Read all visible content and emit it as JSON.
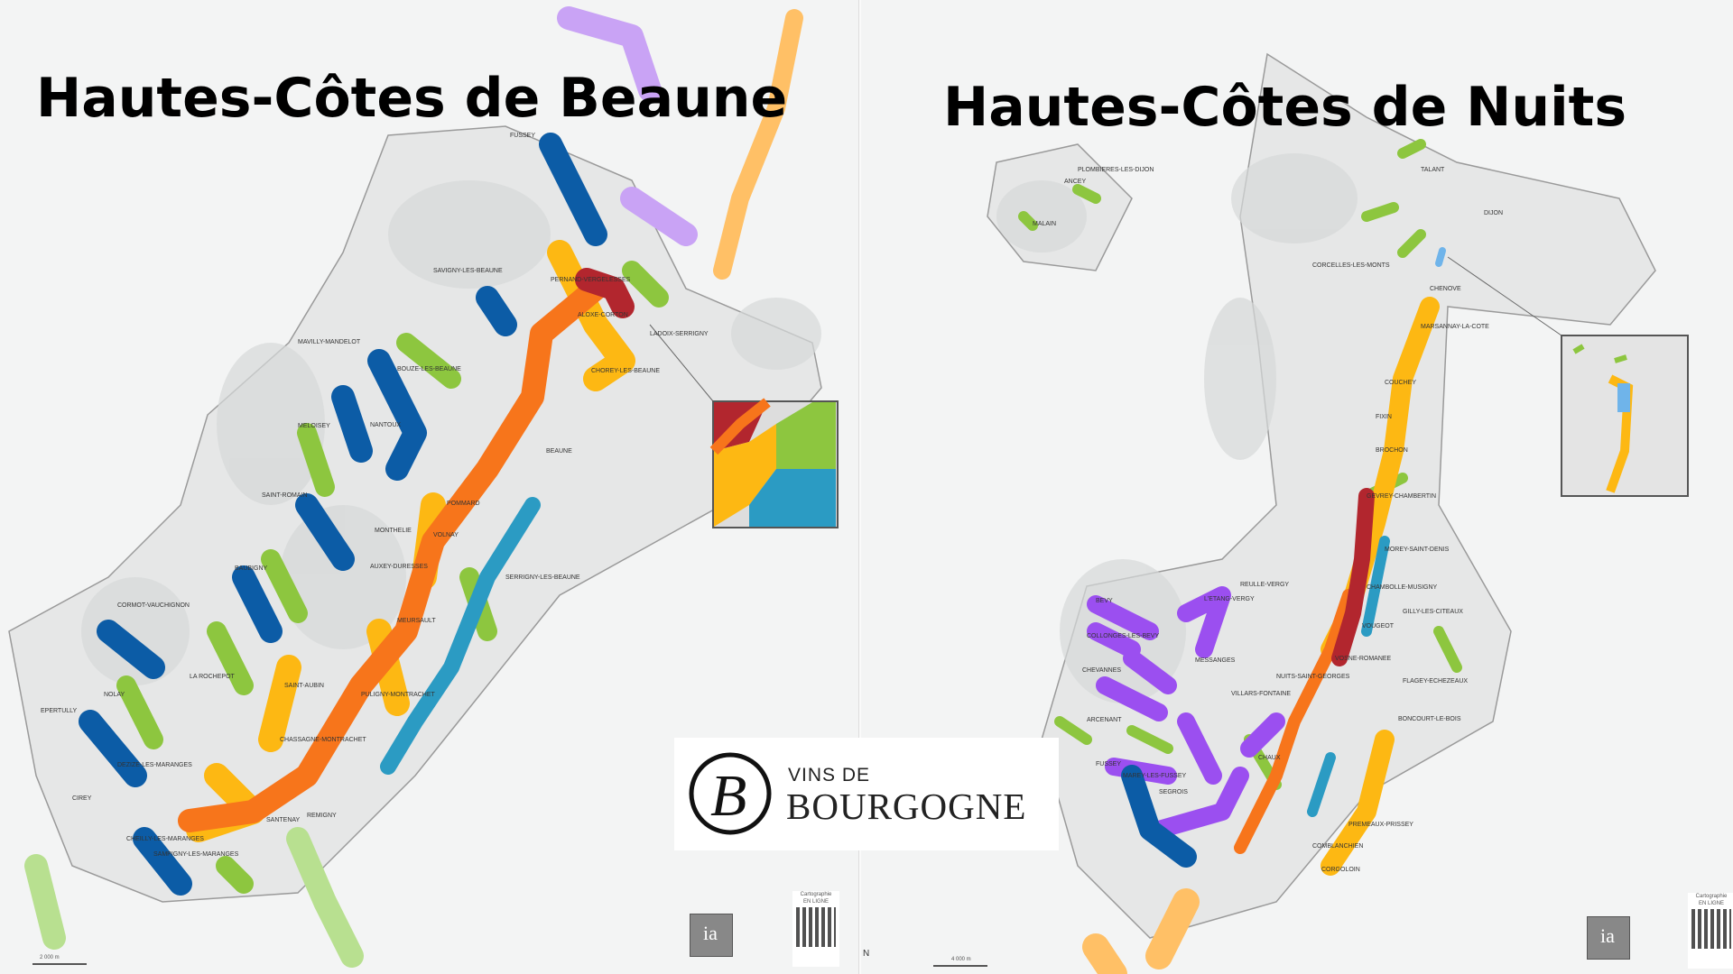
{
  "titles": {
    "left": "Hautes-Côtes de Beaune",
    "right": "Hautes-Côtes de Nuits"
  },
  "logo": {
    "line1": "VINS DE",
    "line2": "BOURGOGNE",
    "monogram": "B"
  },
  "cartography_badge": {
    "line1": "Cartographie",
    "line2": "EN LIGNE"
  },
  "institute_logo": "ia",
  "north_label": "N",
  "scale_left": "2 000 m",
  "scale_right": "4 000 m",
  "colors": {
    "dark_blue": "#0c5ca6",
    "green": "#8dc63f",
    "yellow": "#fdb813",
    "orange": "#f7751b",
    "dark_red": "#b2262e",
    "teal": "#2b9bc3",
    "purple": "#9b4ff0",
    "light_blue": "#6fb4ea",
    "lavender": "#c9a3f5"
  },
  "places_left": [
    "FUSSEY",
    "SAVIGNY-LES-BEAUNE",
    "PERNAND-VERGELESSES",
    "ALOXE-CORTON",
    "MAVILLY-MANDELOT",
    "BOUZE-LES-BEAUNE",
    "CHOREY-LES-BEAUNE",
    "LADOIX-SERRIGNY",
    "BEAUNE",
    "MELOISEY",
    "NANTOUX",
    "SAINT-ROMAIN",
    "POMMARD",
    "VOLNAY",
    "MONTHELIE",
    "AUXEY-DURESSES",
    "MEURSAULT",
    "BAUBIGNY",
    "LA ROCHEPOT",
    "SAINT-AUBIN",
    "PULIGNY-MONTRACHET",
    "CHASSAGNE-MONTRACHET",
    "SANTENAY",
    "NOLAY",
    "DEZIZE-LES-MARANGES",
    "CHEILLY-LES-MARANGES",
    "EPERTULLY",
    "CIREY",
    "REMIGNY",
    "CORMOT-VAUCHIGNON",
    "SAMPIGNY-LES-MARANGES",
    "SERRIGNY-LES-BEAUNE"
  ],
  "places_right": [
    "DIJON",
    "PLOMBIERES-LES-DIJON",
    "TALANT",
    "ANCEY",
    "MALAIN",
    "CORCELLES-LES-MONTS",
    "CHENOVE",
    "MARSANNAY-LA-COTE",
    "COUCHEY",
    "FIXIN",
    "BROCHON",
    "GEVREY-CHAMBERTIN",
    "MOREY-SAINT-DENIS",
    "CHAMBOLLE-MUSIGNY",
    "GILLY-LES-CITEAUX",
    "VOUGEOT",
    "VOSNE-ROMANEE",
    "FLAGEY-ECHEZEAUX",
    "NUITS-SAINT-GEORGES",
    "BONCOURT-LE-BOIS",
    "REULLE-VERGY",
    "L'ETANG-VERGY",
    "BEVY",
    "COLLONGES-LES-BEVY",
    "MESSANGES",
    "CHEVANNES",
    "ARCENANT",
    "VILLARS-FONTAINE",
    "CHAUX",
    "FUSSEY",
    "MAREY-LES-FUSSEY",
    "PREMEAUX-PRISSEY",
    "COMBLANCHIEN",
    "CORGOLOIN",
    "SEGROIS"
  ]
}
